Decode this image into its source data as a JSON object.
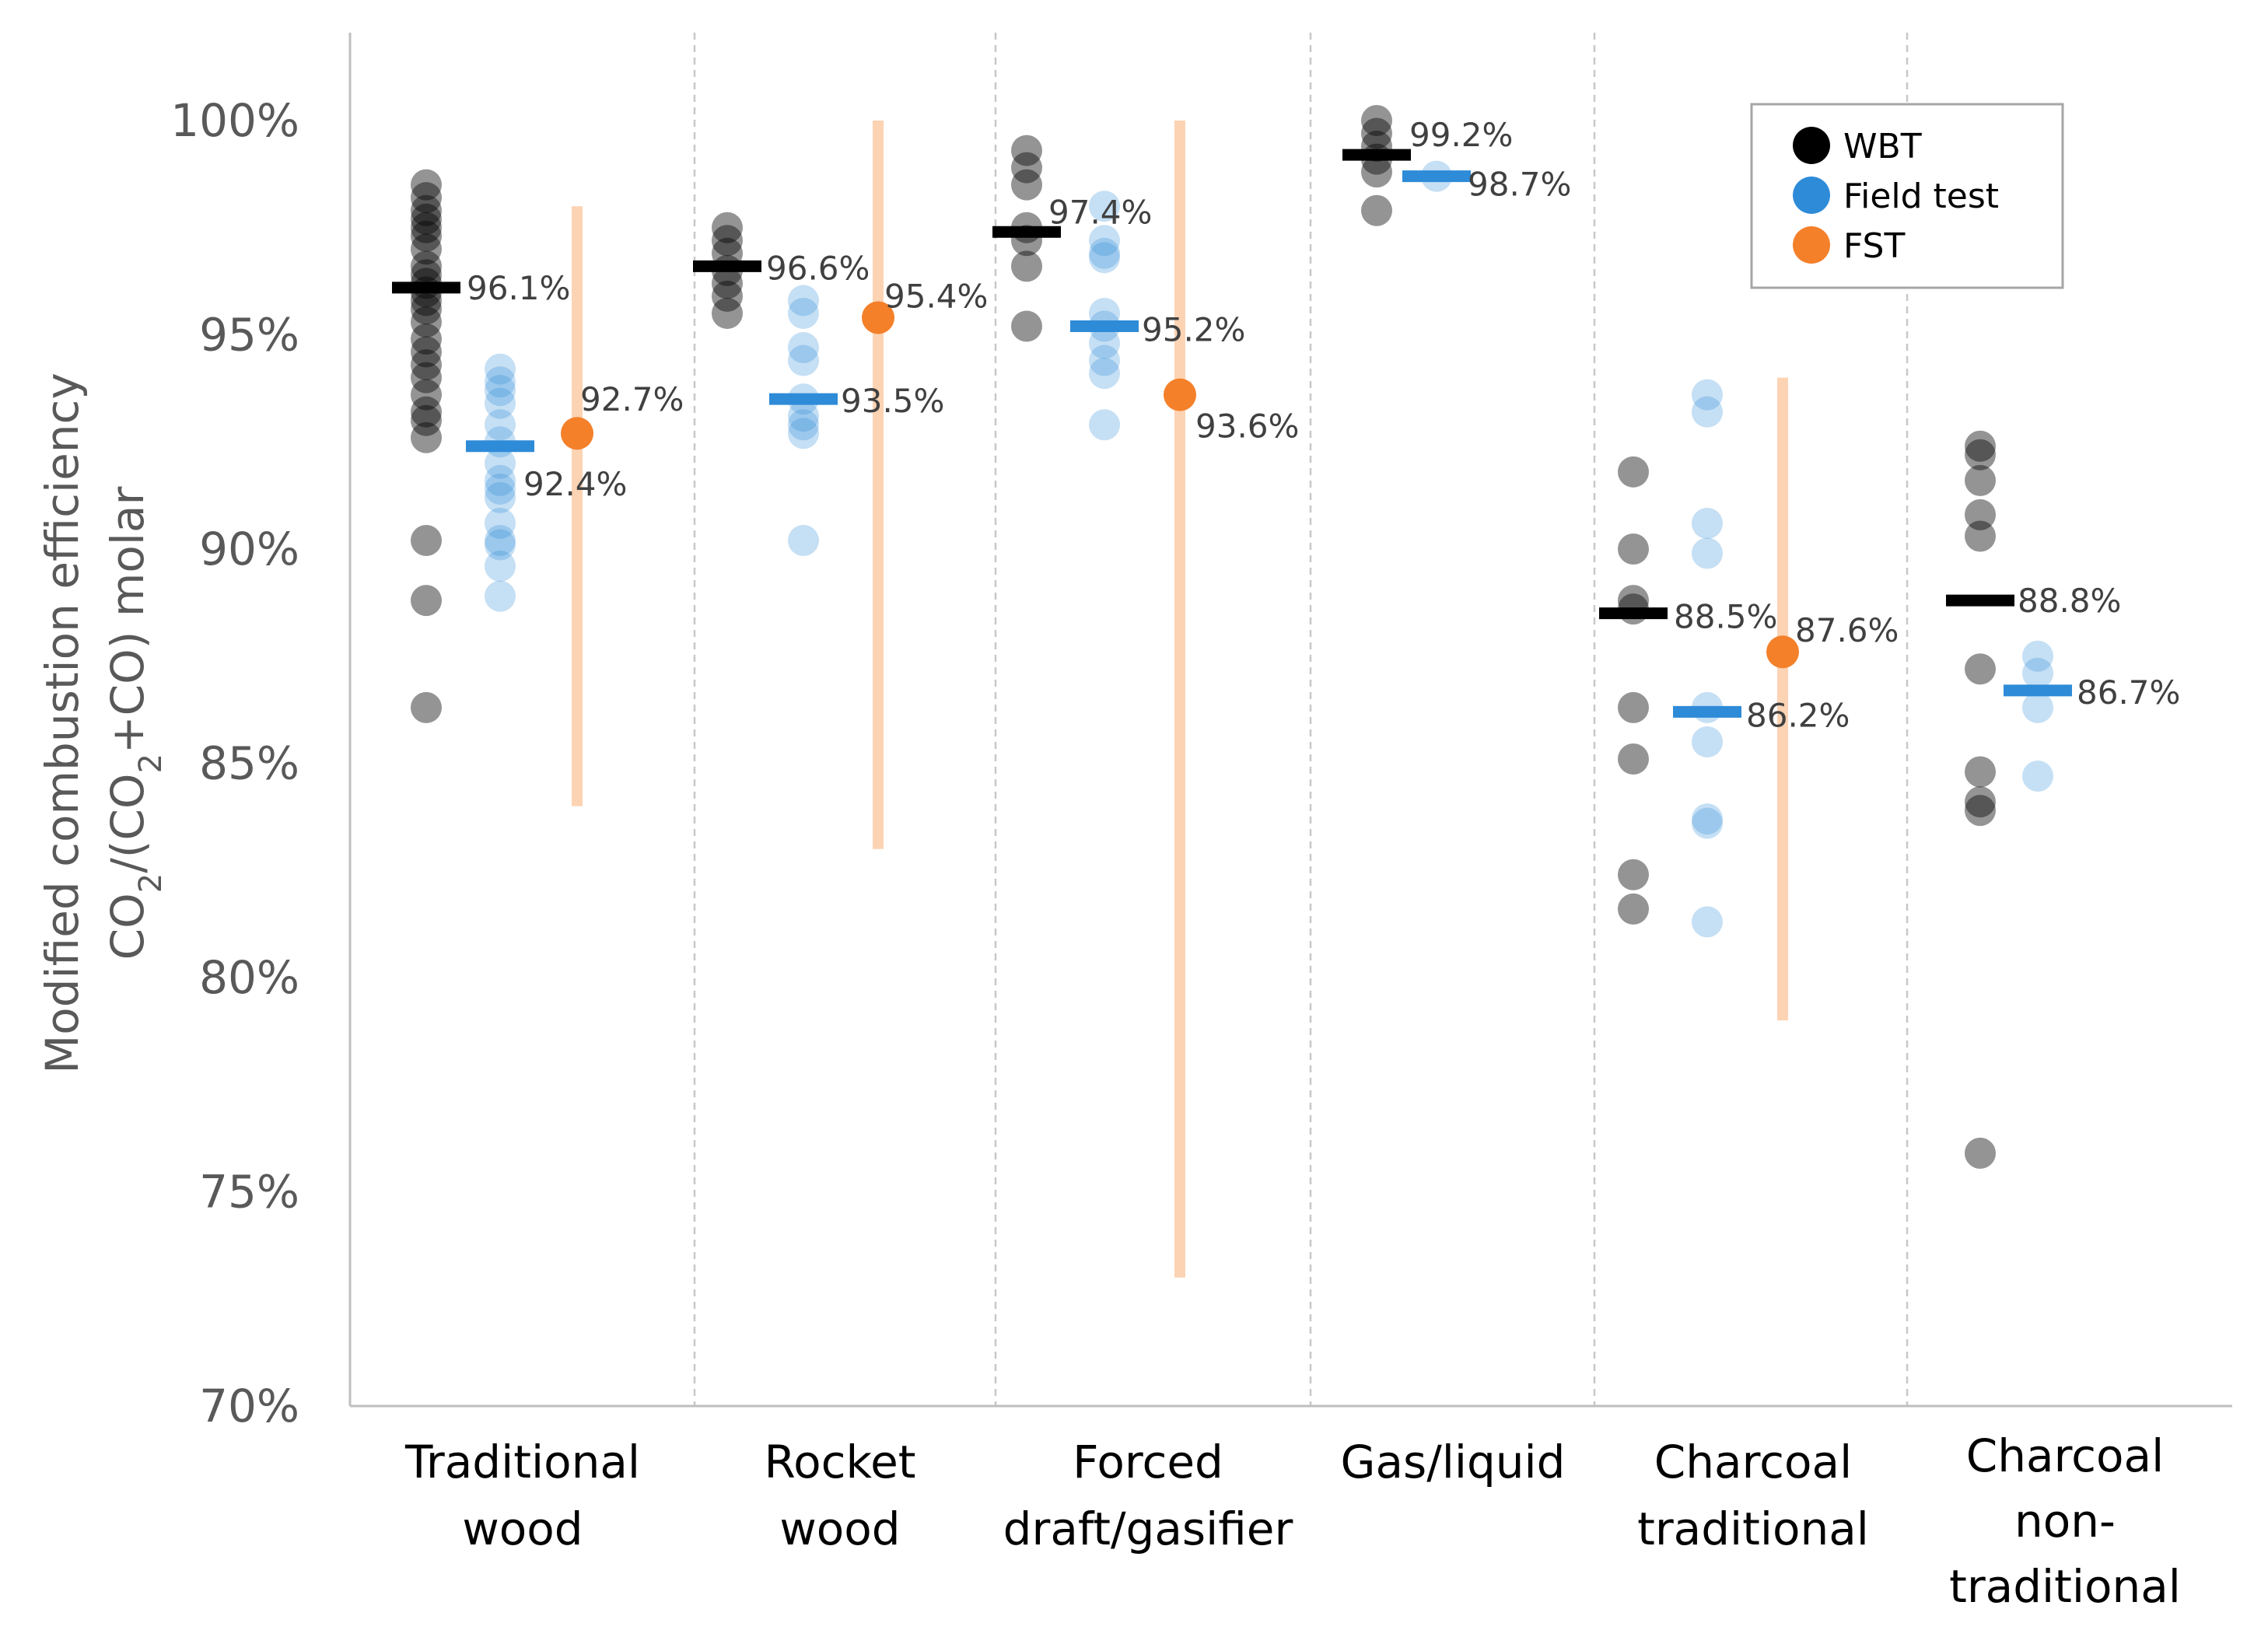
{
  "chart_data": {
    "type": "scatter",
    "title": "",
    "xlabel": "",
    "ylabel_line1": "Modified combustion efficiency",
    "ylabel_line2_parts": [
      "CO",
      "2",
      "/(CO",
      "2",
      "+CO) molar"
    ],
    "ylim": [
      70,
      100
    ],
    "y_ticks": [
      {
        "value": 70,
        "label": "70%"
      },
      {
        "value": 75,
        "label": "75%"
      },
      {
        "value": 80,
        "label": "80%"
      },
      {
        "value": 85,
        "label": "85%"
      },
      {
        "value": 90,
        "label": "90%"
      },
      {
        "value": 95,
        "label": "95%"
      },
      {
        "value": 100,
        "label": "100%"
      }
    ],
    "colors": {
      "WBT": "#000000",
      "Field test": "#2e8bd8",
      "FST": "#f4802a",
      "FST_range": "#fcd3b3",
      "axis": "#bfbfbf",
      "separator": "#c8c8c8"
    },
    "legend": [
      {
        "key": "WBT",
        "label": "WBT"
      },
      {
        "key": "Field test",
        "label": "Field test"
      },
      {
        "key": "FST",
        "label": "FST"
      }
    ],
    "categories": [
      {
        "lines": [
          "Traditional",
          "wood"
        ],
        "WBT": {
          "mean": 96.1,
          "label": "96.1%",
          "points": [
            98.5,
            98.2,
            97.9,
            97.7,
            97.5,
            97.3,
            97.0,
            96.6,
            96.4,
            96.2,
            96.0,
            95.8,
            95.6,
            95.3,
            94.9,
            94.6,
            94.3,
            94.0,
            93.6,
            93.2,
            93.0,
            92.6,
            90.2,
            88.8,
            86.3
          ]
        },
        "Field test": {
          "mean": 92.4,
          "label": "92.4%",
          "points": [
            94.2,
            93.9,
            93.7,
            93.4,
            92.9,
            92.5,
            92.0,
            91.6,
            91.4,
            91.2,
            90.6,
            90.2,
            90.1,
            89.6,
            88.9
          ]
        },
        "FST": {
          "value": 92.7,
          "label": "92.7%",
          "range": [
            84,
            98
          ]
        }
      },
      {
        "lines": [
          "Rocket",
          "wood"
        ],
        "WBT": {
          "mean": 96.6,
          "label": "96.6%",
          "points": [
            97.5,
            97.2,
            96.9,
            96.5,
            96.2,
            95.9,
            95.5
          ]
        },
        "Field test": {
          "mean": 93.5,
          "label": "93.5%",
          "points": [
            95.8,
            95.5,
            94.7,
            94.4,
            93.5,
            93.1,
            92.9,
            92.7,
            90.2
          ]
        },
        "FST": {
          "value": 95.4,
          "label": "95.4%",
          "range": [
            83,
            100
          ]
        }
      },
      {
        "lines": [
          "Forced",
          "draft/gasifier"
        ],
        "WBT": {
          "mean": 97.4,
          "label": "97.4%",
          "points": [
            99.3,
            98.9,
            98.5,
            97.5,
            97.2,
            96.6,
            95.2
          ]
        },
        "Field test": {
          "mean": 95.2,
          "label": "95.2%",
          "points": [
            98.0,
            97.2,
            96.9,
            96.8,
            95.5,
            95.2,
            94.8,
            94.4,
            94.1,
            92.9
          ]
        },
        "FST": {
          "value": 93.6,
          "label": "93.6%",
          "range": [
            73,
            100
          ]
        }
      },
      {
        "lines": [
          "Gas/liquid"
        ],
        "WBT": {
          "mean": 99.2,
          "label": "99.2%",
          "points": [
            100.0,
            99.7,
            99.4,
            99.1,
            98.8,
            97.9
          ]
        },
        "Field test": {
          "mean": 98.7,
          "label": "98.7%",
          "points": [
            98.7
          ]
        },
        "FST": null
      },
      {
        "lines": [
          "Charcoal",
          "traditional"
        ],
        "WBT": {
          "mean": 88.5,
          "label": "88.5%",
          "points": [
            91.8,
            90.0,
            88.8,
            88.6,
            86.3,
            85.1,
            82.4,
            81.6
          ]
        },
        "Field test": {
          "mean": 86.2,
          "label": "86.2%",
          "points": [
            93.6,
            93.2,
            90.6,
            89.9,
            86.3,
            85.5,
            83.7,
            83.6,
            81.3
          ]
        },
        "FST": {
          "value": 87.6,
          "label": "87.6%",
          "range": [
            79,
            94
          ]
        }
      },
      {
        "lines": [
          "Charcoal",
          "non-",
          "traditional"
        ],
        "WBT": {
          "mean": 88.8,
          "label": "88.8%",
          "points": [
            92.4,
            92.2,
            91.6,
            90.8,
            90.3,
            87.2,
            84.8,
            84.1,
            83.9,
            75.9
          ]
        },
        "Field test": {
          "mean": 86.7,
          "label": "86.7%",
          "points": [
            87.5,
            87.1,
            86.3,
            84.7
          ]
        },
        "FST": null
      }
    ]
  }
}
